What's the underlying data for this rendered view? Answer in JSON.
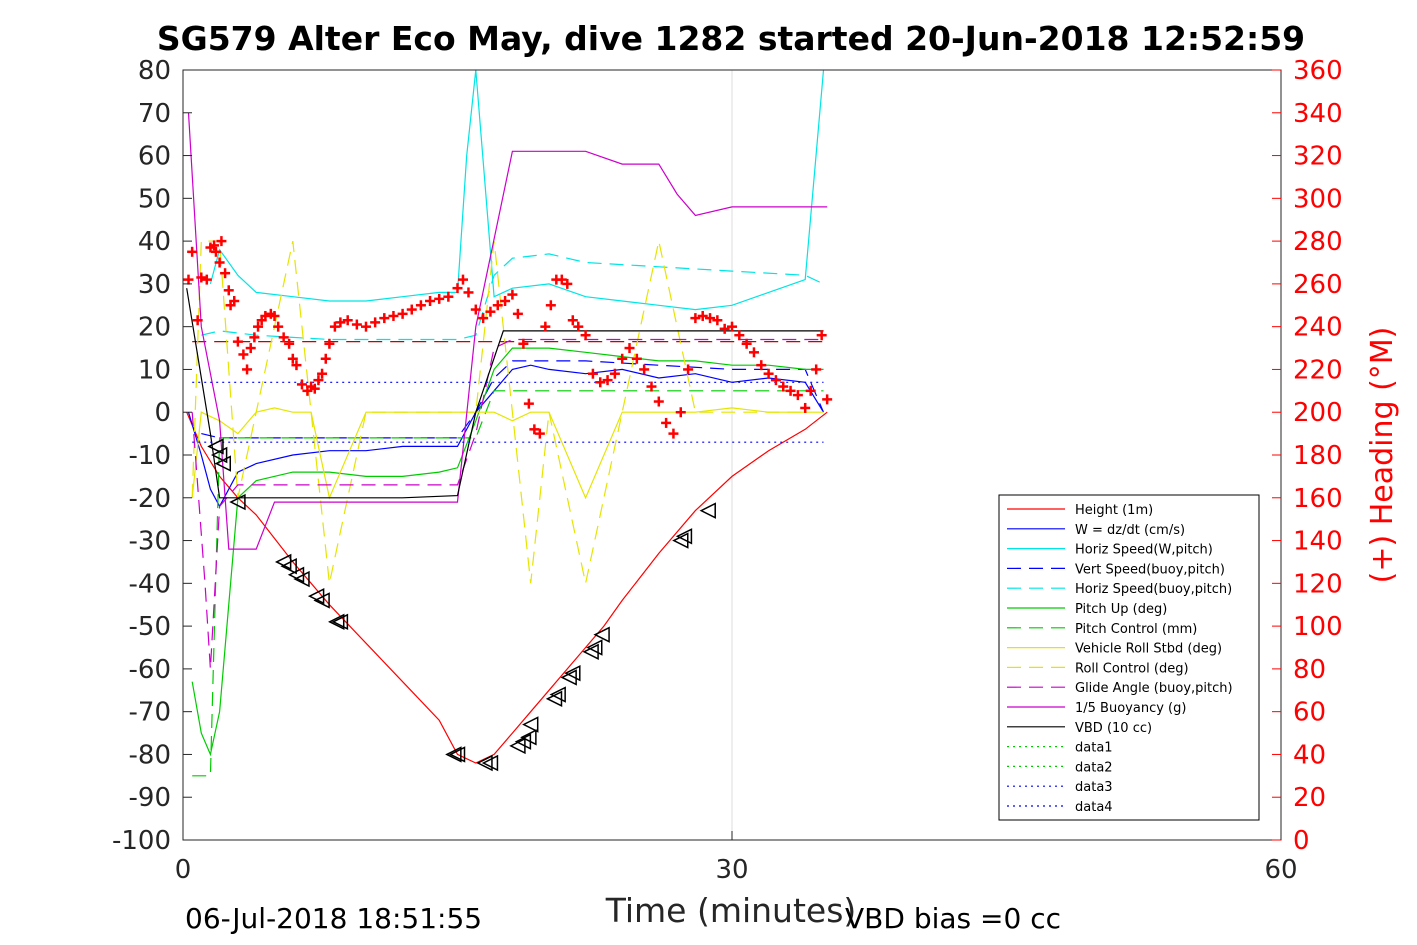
{
  "page": {
    "title": "SG579 Alter Eco May, dive 1282 started 20-Jun-2018 12:52:59",
    "footer_left": "06-Jul-2018 18:51:55",
    "footer_right": "VBD bias =0 cc"
  },
  "chart_data": {
    "type": "line",
    "title": "SG579 Alter Eco May, dive 1282 started 20-Jun-2018 12:52:59",
    "xlabel": "Time (minutes)",
    "ylabel": "",
    "y2label": "(+) Heading (°M)",
    "xlim": [
      0,
      60
    ],
    "ylim": [
      -100,
      80
    ],
    "y2lim": [
      0,
      360
    ],
    "xticks": [
      0,
      30,
      60
    ],
    "yticks": [
      -100,
      -90,
      -80,
      -70,
      -60,
      -50,
      -40,
      -30,
      -20,
      -10,
      0,
      10,
      20,
      30,
      40,
      50,
      60,
      70,
      80
    ],
    "y2ticks": [
      0,
      20,
      40,
      60,
      80,
      100,
      120,
      140,
      160,
      180,
      200,
      220,
      240,
      260,
      280,
      300,
      320,
      340,
      360
    ],
    "grid": "x-only",
    "legend_position": "lower-right",
    "colors": {
      "left_axis": "#262626",
      "right_axis": "#ff0000"
    },
    "series": [
      {
        "name": "Height (1m)",
        "color": "#ff0000",
        "style": "solid",
        "x": [
          0.2,
          1,
          2,
          3,
          4,
          6,
          8,
          10,
          12,
          14,
          15,
          16,
          17,
          18,
          19,
          20,
          21,
          22,
          23,
          24,
          26,
          28,
          30,
          32,
          34,
          35.2
        ],
        "y": [
          0,
          -8,
          -15,
          -20,
          -24,
          -35,
          -45,
          -54,
          -63,
          -72,
          -80,
          -82,
          -80,
          -75,
          -70,
          -65,
          -60,
          -55,
          -50,
          -44,
          -33,
          -23,
          -15,
          -9,
          -4,
          0
        ]
      },
      {
        "name": "W = dz/dt (cm/s)",
        "color": "#0000ff",
        "style": "solid",
        "x": [
          0.3,
          1,
          1.5,
          2,
          3,
          4,
          6,
          8,
          10,
          12,
          14,
          15,
          16,
          17,
          18,
          19,
          20,
          22,
          24,
          26,
          28,
          30,
          32,
          34,
          35
        ],
        "y": [
          0,
          -10,
          -18,
          -22,
          -14,
          -12,
          -10,
          -9,
          -9,
          -8,
          -8,
          -8,
          0,
          5,
          10,
          11,
          10,
          9,
          10,
          8,
          9,
          7,
          8,
          7,
          0
        ]
      },
      {
        "name": "Horiz Speed(W,pitch)",
        "color": "#00e5e5",
        "style": "solid",
        "x": [
          1.5,
          2,
          3,
          4,
          6,
          8,
          10,
          12,
          14,
          15,
          15.5,
          16,
          17,
          18,
          20,
          22,
          24,
          26,
          28,
          30,
          32,
          34,
          35
        ],
        "y": [
          30,
          38,
          32,
          28,
          27,
          26,
          26,
          27,
          28,
          28,
          60,
          80,
          27,
          29,
          30,
          27,
          26,
          25,
          24,
          25,
          28,
          31,
          80
        ]
      },
      {
        "name": "Vert Speed(buoy,pitch)",
        "color": "#0000ff",
        "style": "dashed",
        "x": [
          1,
          2,
          4,
          8,
          12,
          15,
          16,
          17,
          18,
          22,
          26,
          30,
          34,
          35
        ],
        "y": [
          -5,
          -6,
          -6,
          -6,
          -6,
          -6,
          0,
          8,
          12,
          12,
          11,
          10,
          10,
          0
        ]
      },
      {
        "name": "Horiz Speed(buoy,pitch)",
        "color": "#00e5e5",
        "style": "dashed",
        "x": [
          1,
          2,
          4,
          8,
          12,
          15,
          16,
          17,
          18,
          20,
          22,
          26,
          30,
          34,
          35
        ],
        "y": [
          18,
          19,
          18,
          17,
          17,
          17,
          18,
          32,
          36,
          37,
          35,
          34,
          33,
          32,
          30
        ]
      },
      {
        "name": "Pitch Up (deg)",
        "color": "#00cc00",
        "style": "solid",
        "x": [
          0.5,
          1,
          1.5,
          2,
          3,
          4,
          6,
          8,
          10,
          12,
          14,
          15,
          16,
          17,
          18,
          20,
          22,
          24,
          26,
          28,
          30,
          32,
          34,
          35
        ],
        "y": [
          -63,
          -75,
          -80,
          -70,
          -20,
          -16,
          -14,
          -14,
          -15,
          -15,
          -14,
          -13,
          -2,
          10,
          15,
          15,
          14,
          13,
          12,
          12,
          11,
          11,
          10,
          10
        ]
      },
      {
        "name": "Pitch Control (mm)",
        "color": "#00cc00",
        "style": "dashed",
        "x": [
          0.5,
          1.5,
          2,
          4,
          8,
          12,
          15,
          16,
          17,
          18,
          22,
          26,
          30,
          34,
          35
        ],
        "y": [
          -85,
          -85,
          -6,
          -6,
          -6,
          -6,
          -6,
          -6,
          5,
          5,
          5,
          5,
          5,
          5,
          5
        ]
      },
      {
        "name": "Vehicle Roll Stbd (deg)",
        "color": "#e5e500",
        "style": "solid",
        "x": [
          0.5,
          1,
          2,
          3,
          4,
          5,
          6,
          7,
          8,
          10,
          12,
          14,
          16,
          17,
          18,
          19,
          20,
          22,
          24,
          26,
          28,
          30,
          32,
          34,
          35
        ],
        "y": [
          -20,
          0,
          -2,
          -5,
          0,
          1,
          0,
          0,
          -20,
          0,
          0,
          0,
          0,
          0,
          -2,
          0,
          0,
          -20,
          0,
          0,
          0,
          1,
          0,
          0,
          0
        ]
      },
      {
        "name": "Roll Control (deg)",
        "color": "#e5e500",
        "style": "dashed",
        "x": [
          0.5,
          1,
          2,
          3,
          4,
          5,
          6,
          7,
          8,
          10,
          14,
          16,
          17,
          18,
          19,
          20,
          22,
          24,
          26,
          28,
          30,
          34
        ],
        "y": [
          -20,
          40,
          40,
          -20,
          0,
          20,
          40,
          0,
          -40,
          0,
          0,
          0,
          40,
          0,
          -40,
          0,
          -40,
          0,
          40,
          0,
          0,
          0
        ]
      },
      {
        "name": "Glide Angle (buoy,pitch)",
        "color": "#cc00cc",
        "style": "dashed",
        "x": [
          0.5,
          1.2,
          1.5,
          2,
          3,
          4,
          8,
          12,
          15,
          16,
          17,
          18,
          22,
          26,
          30,
          34,
          35
        ],
        "y": [
          0,
          -40,
          -60,
          -22,
          -17,
          -17,
          -17,
          -17,
          -17,
          -5,
          15,
          17,
          17,
          17,
          17,
          17,
          17
        ]
      },
      {
        "name": "1/5 Buoyancy (g)",
        "color": "#cc00cc",
        "style": "solid",
        "x": [
          0.3,
          1,
          2,
          2.5,
          3,
          4,
          5,
          8,
          12,
          15,
          16,
          18,
          20,
          22,
          24,
          26,
          27,
          28,
          30,
          32,
          34,
          35.2
        ],
        "y": [
          70,
          20,
          -2,
          -32,
          -32,
          -32,
          -21,
          -21,
          -21,
          -21,
          20,
          61,
          61,
          61,
          58,
          58,
          51,
          46,
          48,
          48,
          48,
          48
        ]
      },
      {
        "name": "VBD (10 cc)",
        "color": "#000000",
        "style": "solid",
        "x": [
          0.2,
          1.5,
          2,
          3,
          4,
          8,
          12,
          15,
          16,
          17.5,
          18,
          22,
          26,
          30,
          34,
          35
        ],
        "y": [
          29,
          -5,
          -20,
          -20,
          -20,
          -20,
          -20,
          -19.5,
          0,
          19,
          19,
          19,
          19,
          19,
          19,
          19
        ]
      },
      {
        "name": "data1",
        "color": "#00cc00",
        "style": "dotted",
        "x": [],
        "y": []
      },
      {
        "name": "data2",
        "color": "#00cc00",
        "style": "dotted",
        "x": [],
        "y": []
      },
      {
        "name": "data3",
        "color": "#0000ff",
        "style": "dotted",
        "x": [
          0.5,
          35
        ],
        "y": [
          7,
          7
        ]
      },
      {
        "name": "data4",
        "color": "#0000ff",
        "style": "dotted",
        "x": [
          0.5,
          35
        ],
        "y": [
          -7,
          -7
        ]
      }
    ],
    "extra_lines": [
      {
        "color": "#cc0000",
        "style": "dashed",
        "x": [
          0.5,
          35
        ],
        "y": [
          16.5,
          16.5
        ]
      }
    ],
    "heading_markers": {
      "color": "#ff0000",
      "symbol": "+",
      "axis": "right",
      "x": [
        0.3,
        0.5,
        0.8,
        1.0,
        1.3,
        1.5,
        1.7,
        1.8,
        2.0,
        2.1,
        2.3,
        2.5,
        2.6,
        2.8,
        3.0,
        3.3,
        3.5,
        3.7,
        3.9,
        4.1,
        4.3,
        4.5,
        4.8,
        5.0,
        5.2,
        5.5,
        5.8,
        6.0,
        6.2,
        6.5,
        6.8,
        7.0,
        7.2,
        7.4,
        7.6,
        7.8,
        8.0,
        8.3,
        8.6,
        9.0,
        9.5,
        10.0,
        10.5,
        11.0,
        11.5,
        12.0,
        12.5,
        13.0,
        13.5,
        14.0,
        14.5,
        15.0,
        15.3,
        15.6,
        16.0,
        16.4,
        16.8,
        17.2,
        17.6,
        18.0,
        18.3,
        18.6,
        18.9,
        19.2,
        19.5,
        19.8,
        20.1,
        20.4,
        20.7,
        21.0,
        21.3,
        21.6,
        22.0,
        22.4,
        22.8,
        23.2,
        23.6,
        24.0,
        24.4,
        24.8,
        25.2,
        25.6,
        26.0,
        26.4,
        26.8,
        27.2,
        27.6,
        28.0,
        28.4,
        28.8,
        29.2,
        29.6,
        30.0,
        30.4,
        30.8,
        31.2,
        31.6,
        32.0,
        32.4,
        32.8,
        33.2,
        33.6,
        34.0,
        34.3,
        34.6,
        34.9,
        35.2
      ],
      "y": [
        262,
        275,
        243,
        263,
        262,
        277,
        278,
        275,
        270,
        280,
        265,
        257,
        250,
        252,
        233,
        227,
        220,
        230,
        235,
        240,
        243,
        245,
        246,
        245,
        240,
        235,
        232,
        225,
        222,
        213,
        210,
        212,
        211,
        215,
        218,
        225,
        232,
        240,
        242,
        243,
        241,
        240,
        242,
        244,
        245,
        246,
        248,
        250,
        252,
        253,
        254,
        258,
        262,
        256,
        248,
        244,
        247,
        250,
        252,
        255,
        246,
        232,
        204,
        192,
        190,
        240,
        250,
        262,
        262,
        260,
        243,
        240,
        236,
        218,
        214,
        215,
        218,
        225,
        230,
        225,
        220,
        212,
        205,
        195,
        190,
        200,
        220,
        244,
        245,
        244,
        243,
        239,
        240,
        236,
        232,
        228,
        222,
        218,
        215,
        212,
        210,
        208,
        202,
        210,
        220,
        236,
        206
      ]
    },
    "event_markers": {
      "color": "#000000",
      "symbol": "triangle-left",
      "axis": "left",
      "x": [
        1.8,
        2.0,
        2.2,
        3.0,
        5.5,
        5.8,
        6.2,
        6.5,
        7.3,
        7.6,
        8.4,
        8.6,
        14.8,
        15.0,
        16.5,
        16.8,
        18.3,
        18.6,
        18.9,
        19.0,
        20.3,
        20.5,
        21.1,
        21.3,
        22.3,
        22.5,
        22.9,
        27.2,
        27.4,
        28.7
      ],
      "y": [
        -8,
        -10,
        -12,
        -21,
        -35,
        -36,
        -38,
        -39,
        -43,
        -44,
        -49,
        -49,
        -80,
        -80,
        -82,
        -82,
        -78,
        -77,
        -76,
        -73,
        -67,
        -66,
        -62,
        -61,
        -56,
        -55,
        -52,
        -30,
        -29,
        -23
      ]
    }
  },
  "legend": {
    "entries": [
      "Height (1m)",
      "W = dz/dt (cm/s)",
      "Horiz Speed(W,pitch)",
      "Vert Speed(buoy,pitch)",
      "Horiz Speed(buoy,pitch)",
      "Pitch Up (deg)",
      "Pitch Control (mm)",
      "Vehicle Roll Stbd (deg)",
      "Roll Control (deg)",
      "Glide Angle (buoy,pitch)",
      "1/5 Buoyancy (g)",
      "VBD (10 cc)",
      "data1",
      "data2",
      "data3",
      "data4"
    ]
  }
}
